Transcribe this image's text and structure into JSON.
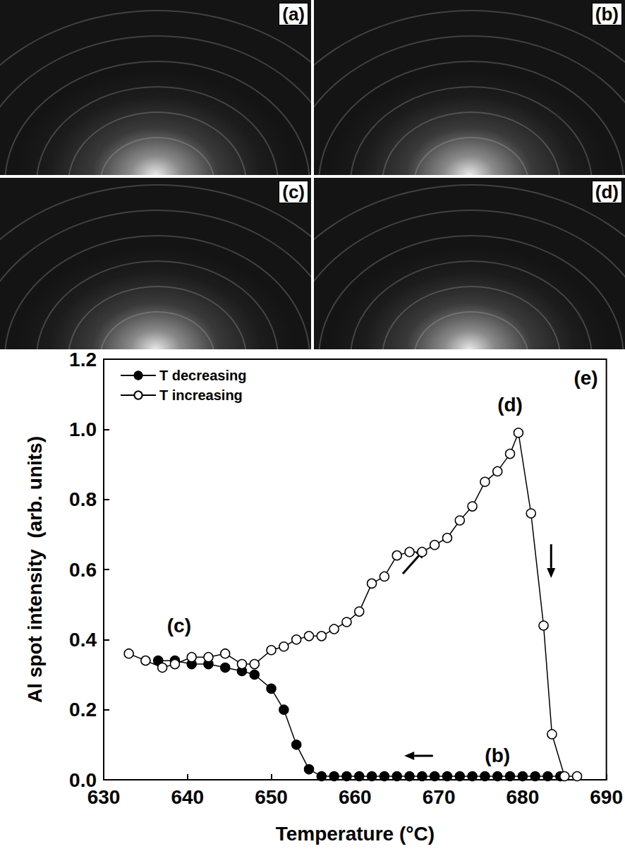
{
  "image_panels": [
    "(a)",
    "(b)",
    "(c)",
    "(d)"
  ],
  "chart_data": {
    "type": "line",
    "panel_label": "(e)",
    "x_label": "Temperature (°C)",
    "y_label": "Al spot intensity  (arb. units)",
    "xlim": [
      630,
      690
    ],
    "xticks": [
      630,
      640,
      650,
      660,
      670,
      680,
      690
    ],
    "ylim": [
      0,
      1.2
    ],
    "yticks": [
      {
        "value": 0,
        "label": "0.0"
      },
      0.2,
      0.4,
      0.6,
      0.8,
      {
        "value": 1,
        "label": "1.0"
      },
      1.2
    ],
    "grid": false,
    "legend": "upper left",
    "series": [
      {
        "name": "T decreasing",
        "color": "#000000",
        "marker": "filled_circle",
        "line_style": "solid",
        "x": [
          636.5,
          638.5,
          640.5,
          642.5,
          644.5,
          646.5,
          648,
          650,
          651.5,
          653,
          654.5,
          656,
          657.5,
          659,
          660.5,
          662,
          663.5,
          665,
          666.5,
          668,
          669.5,
          671,
          672.5,
          674,
          675.5,
          677,
          678.5,
          680,
          681.5,
          683,
          684.5
        ],
        "values": [
          0.34,
          0.34,
          0.33,
          0.33,
          0.32,
          0.31,
          0.3,
          0.26,
          0.2,
          0.1,
          0.03,
          0.01,
          0.01,
          0.01,
          0.01,
          0.01,
          0.01,
          0.01,
          0.01,
          0.01,
          0.01,
          0.01,
          0.01,
          0.01,
          0.01,
          0.01,
          0.01,
          0.01,
          0.01,
          0.01,
          0.01
        ]
      },
      {
        "name": "T increasing",
        "color": "#000000",
        "marker": "open_circle",
        "line_style": "solid",
        "x": [
          633,
          635,
          637,
          638.5,
          640.5,
          642.5,
          644.5,
          646.5,
          648,
          650,
          651.5,
          653,
          654.5,
          656,
          657.5,
          659,
          660.5,
          662,
          663.5,
          665,
          666.5,
          668,
          669.5,
          671,
          672.5,
          674,
          675.5,
          677,
          678.5,
          679.5,
          681,
          682.5,
          683.5,
          685,
          686.5
        ],
        "values": [
          0.36,
          0.34,
          0.32,
          0.33,
          0.35,
          0.35,
          0.36,
          0.33,
          0.33,
          0.37,
          0.38,
          0.4,
          0.41,
          0.41,
          0.43,
          0.45,
          0.48,
          0.56,
          0.58,
          0.64,
          0.65,
          0.65,
          0.67,
          0.69,
          0.74,
          0.78,
          0.85,
          0.88,
          0.93,
          0.99,
          0.76,
          0.44,
          0.13,
          0.01,
          0.01
        ]
      }
    ],
    "annotations": [
      {
        "text": "(c)",
        "x": 639,
        "y": 0.44
      },
      {
        "text": "(d)",
        "x": 678.5,
        "y": 1.07
      },
      {
        "text": "(b)",
        "x": 677,
        "y": 0.07
      }
    ]
  }
}
